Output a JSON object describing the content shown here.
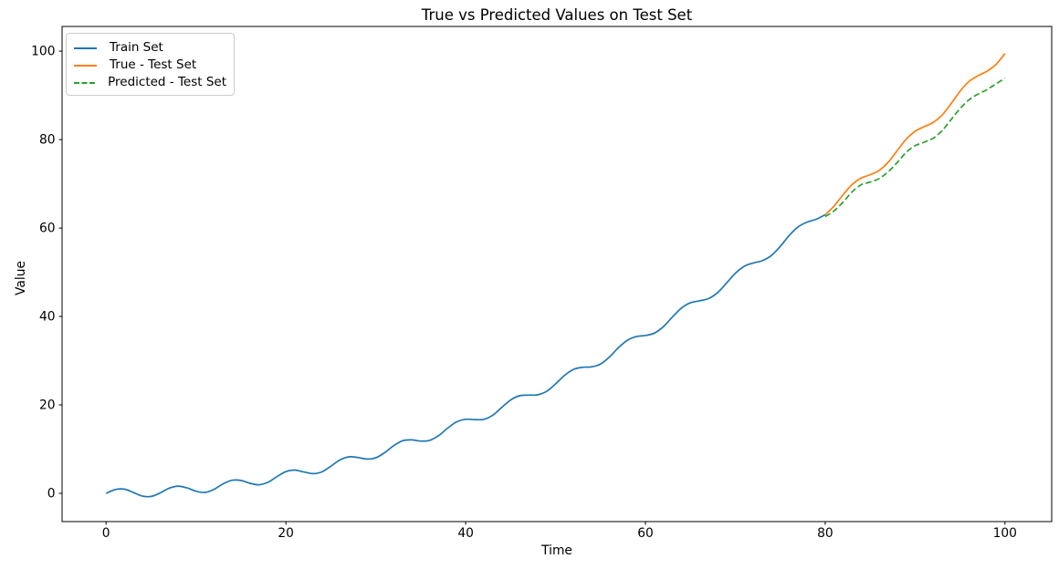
{
  "chart_data": {
    "type": "line",
    "title": "True vs Predicted Values on Test Set",
    "xlabel": "Time",
    "ylabel": "Value",
    "xlim": [
      -4.9,
      105.2
    ],
    "ylim": [
      -6.4,
      105.6
    ],
    "xticks": [
      0,
      20,
      40,
      60,
      80,
      100
    ],
    "yticks": [
      0,
      20,
      40,
      60,
      80,
      100
    ],
    "grid": false,
    "legend": {
      "position": "upper-left"
    },
    "series": [
      {
        "name": "Train Set",
        "color": "#1f77b4",
        "line_style": "solid",
        "x": [
          0,
          1,
          2,
          3,
          4,
          5,
          6,
          7,
          8,
          9,
          10,
          11,
          12,
          13,
          14,
          15,
          16,
          17,
          18,
          19,
          20,
          21,
          22,
          23,
          24,
          25,
          26,
          27,
          28,
          29,
          30,
          31,
          32,
          33,
          34,
          35,
          36,
          37,
          38,
          39,
          40,
          41,
          42,
          43,
          44,
          45,
          46,
          47,
          48,
          49,
          50,
          51,
          52,
          53,
          54,
          55,
          56,
          57,
          58,
          59,
          60,
          61,
          62,
          63,
          64,
          65,
          66,
          67,
          68,
          69,
          70,
          71,
          72,
          73,
          74,
          75,
          76,
          77,
          78,
          79,
          80
        ],
        "y": [
          0.0,
          0.85,
          0.95,
          0.23,
          -0.6,
          -0.71,
          0.08,
          1.15,
          1.63,
          1.22,
          0.46,
          0.21,
          0.9,
          2.11,
          2.95,
          2.9,
          2.27,
          1.93,
          2.49,
          3.76,
          4.91,
          5.25,
          4.83,
          4.44,
          4.85,
          6.12,
          7.52,
          8.25,
          8.11,
          7.75,
          8.01,
          9.21,
          10.79,
          11.89,
          12.09,
          11.82,
          11.97,
          13.05,
          14.74,
          16.17,
          16.75,
          16.65,
          16.72,
          17.66,
          19.38,
          21.1,
          22.06,
          22.21,
          22.27,
          23.06,
          24.74,
          26.68,
          28.03,
          28.49,
          28.6,
          29.25,
          30.84,
          32.93,
          34.63,
          35.45,
          35.7,
          36.24,
          37.7,
          39.86,
          41.88,
          43.08,
          43.53,
          44.03,
          45.34,
          47.5,
          49.77,
          51.36,
          52.09,
          52.61,
          53.77,
          55.86,
          58.33,
          60.29,
          61.35,
          61.97,
          63.01
        ]
      },
      {
        "name": "True - Test Set",
        "color": "#ff7f0e",
        "line_style": "solid",
        "x": [
          80,
          81,
          82,
          83,
          84,
          85,
          86,
          87,
          88,
          89,
          90,
          91,
          92,
          93,
          94,
          95,
          96,
          97,
          98,
          99,
          100
        ],
        "y": [
          63.01,
          64.98,
          67.55,
          69.86,
          71.29,
          72.07,
          73.04,
          74.87,
          77.48,
          80.07,
          81.89,
          82.92,
          83.86,
          85.54,
          88.11,
          90.93,
          93.14,
          94.47,
          95.47,
          97.01,
          99.49
        ]
      },
      {
        "name": "Predicted - Test Set",
        "color": "#2ca02c",
        "line_style": "dashed",
        "x": [
          80,
          81,
          82,
          83,
          84,
          85,
          86,
          87,
          88,
          89,
          90,
          91,
          92,
          93,
          94,
          95,
          96,
          97,
          98,
          99,
          100
        ],
        "y": [
          62.6,
          63.9,
          65.9,
          68.2,
          69.8,
          70.4,
          71.2,
          72.7,
          74.8,
          77.1,
          78.6,
          79.4,
          80.3,
          82.0,
          84.5,
          87.0,
          89.0,
          90.3,
          91.3,
          92.6,
          93.9
        ]
      }
    ]
  }
}
